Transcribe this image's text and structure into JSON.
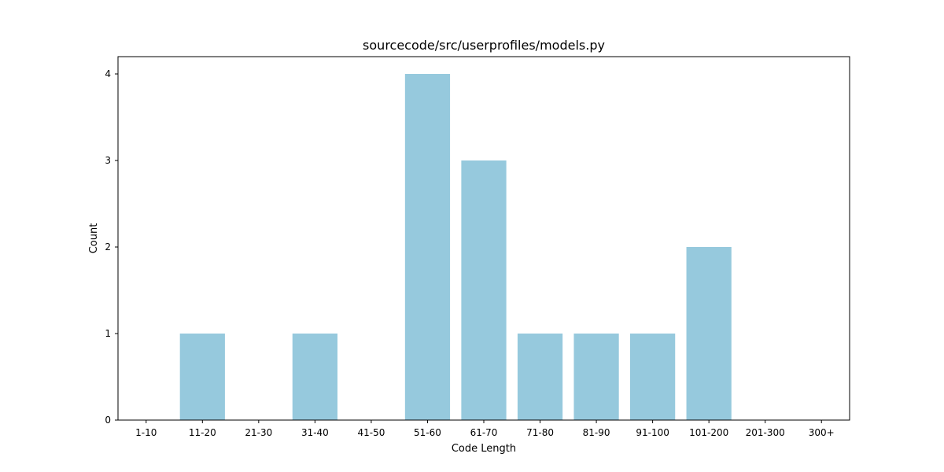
{
  "chart_data": {
    "type": "bar",
    "title": "sourcecode/src/userprofiles/models.py",
    "xlabel": "Code Length",
    "ylabel": "Count",
    "categories": [
      "1-10",
      "11-20",
      "21-30",
      "31-40",
      "41-50",
      "51-60",
      "61-70",
      "71-80",
      "81-90",
      "91-100",
      "101-200",
      "201-300",
      "300+"
    ],
    "values": [
      0,
      1,
      0,
      1,
      0,
      4,
      3,
      1,
      1,
      1,
      2,
      0,
      0
    ],
    "ylim": [
      0,
      4.2
    ],
    "yticks": [
      "0",
      "1",
      "2",
      "3",
      "4"
    ],
    "bar_color": "#96c9dd",
    "grid": false,
    "legend": "none"
  }
}
